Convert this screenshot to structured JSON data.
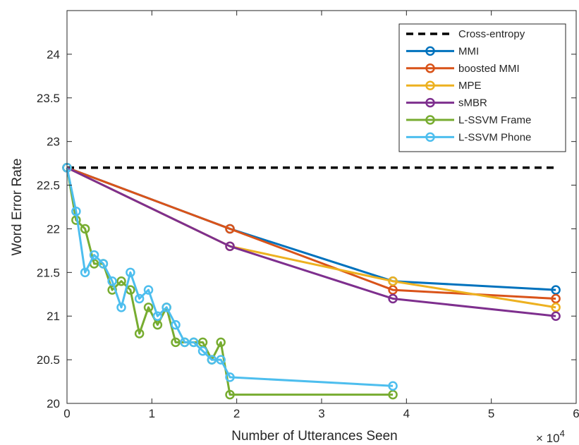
{
  "chart_data": {
    "type": "line",
    "title": "",
    "xlabel": "Number of Utterances Seen",
    "ylabel": "Word Error Rate",
    "x_exponent_label": "× 10",
    "x_exponent": "4",
    "xlim": [
      0,
      60000
    ],
    "ylim": [
      20,
      24.5
    ],
    "xticks": [
      0,
      10000,
      20000,
      30000,
      40000,
      50000,
      60000
    ],
    "xtick_labels": [
      "0",
      "1",
      "2",
      "3",
      "4",
      "5",
      "6"
    ],
    "yticks": [
      20,
      20.5,
      21,
      21.5,
      22,
      22.5,
      23,
      23.5,
      24
    ],
    "ytick_labels": [
      "20",
      "20.5",
      "21",
      "21.5",
      "22",
      "22.5",
      "23",
      "23.5",
      "24"
    ],
    "grid": false,
    "legend_position": "top-right",
    "series": [
      {
        "name": "Cross-entropy",
        "color": "#000000",
        "dashed": true,
        "markers": false,
        "x": [
          0,
          57600
        ],
        "y": [
          22.7,
          22.7
        ]
      },
      {
        "name": "MMI",
        "color": "#0072BD",
        "dashed": false,
        "markers": true,
        "x": [
          0,
          19200,
          38400,
          57600
        ],
        "y": [
          22.7,
          22.0,
          21.4,
          21.3
        ]
      },
      {
        "name": "boosted MMI",
        "color": "#D95319",
        "dashed": false,
        "markers": true,
        "x": [
          0,
          19200,
          38400,
          57600
        ],
        "y": [
          22.7,
          22.0,
          21.3,
          21.2
        ]
      },
      {
        "name": "MPE",
        "color": "#EDB120",
        "dashed": false,
        "markers": true,
        "x": [
          0,
          19200,
          38400,
          57600
        ],
        "y": [
          22.7,
          21.8,
          21.4,
          21.1
        ]
      },
      {
        "name": "sMBR",
        "color": "#7E2F8E",
        "dashed": false,
        "markers": true,
        "x": [
          0,
          19200,
          38400,
          57600
        ],
        "y": [
          22.7,
          21.8,
          21.2,
          21.0
        ]
      },
      {
        "name": "L-SSVM Frame",
        "color": "#77AC30",
        "dashed": false,
        "markers": true,
        "x": [
          0,
          1070,
          2130,
          3200,
          4270,
          5330,
          6400,
          7470,
          8530,
          9600,
          10670,
          11730,
          12800,
          13870,
          14930,
          16000,
          17070,
          18130,
          19200,
          38400
        ],
        "y": [
          22.7,
          22.1,
          22.0,
          21.6,
          21.6,
          21.3,
          21.4,
          21.3,
          20.8,
          21.1,
          20.9,
          21.1,
          20.7,
          20.7,
          20.7,
          20.7,
          20.5,
          20.7,
          20.1,
          20.1
        ]
      },
      {
        "name": "L-SSVM Phone",
        "color": "#4DBEEE",
        "dashed": false,
        "markers": true,
        "x": [
          0,
          1070,
          2130,
          3200,
          4270,
          5330,
          6400,
          7470,
          8530,
          9600,
          10670,
          11730,
          12800,
          13870,
          14930,
          16000,
          17070,
          18130,
          19200,
          38400
        ],
        "y": [
          22.7,
          22.2,
          21.5,
          21.7,
          21.6,
          21.4,
          21.1,
          21.5,
          21.2,
          21.3,
          21.0,
          21.1,
          20.9,
          20.7,
          20.7,
          20.6,
          20.5,
          20.5,
          20.3,
          20.2
        ]
      }
    ]
  }
}
